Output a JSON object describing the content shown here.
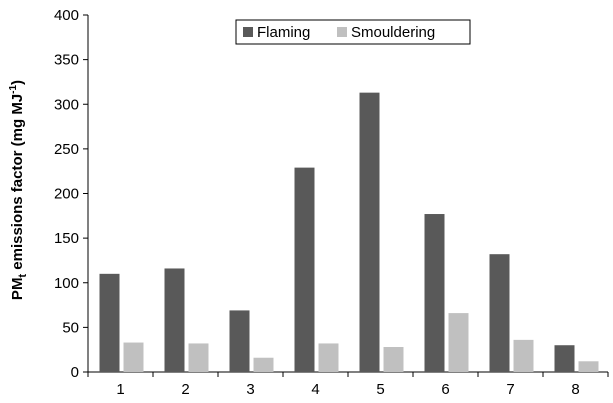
{
  "chart_data": {
    "type": "bar",
    "categories": [
      "1",
      "2",
      "3",
      "4",
      "5",
      "6",
      "7",
      "8"
    ],
    "series": [
      {
        "name": "Flaming",
        "values": [
          110,
          116,
          69,
          229,
          313,
          177,
          132,
          30
        ],
        "color": "#595959"
      },
      {
        "name": "Smouldering",
        "values": [
          33,
          32,
          16,
          32,
          28,
          66,
          36,
          12
        ],
        "color": "#c0c0c0"
      }
    ],
    "ylabel": {
      "main": "PM",
      "sub": "t",
      "rest": " emissions factor (mg MJ",
      "sup": "-1",
      "end": ")"
    },
    "xlabel": "",
    "ylim": [
      0,
      400
    ],
    "yticks": [
      0,
      50,
      100,
      150,
      200,
      250,
      300,
      350,
      400
    ],
    "legend_position": "top-center",
    "grid": false
  }
}
